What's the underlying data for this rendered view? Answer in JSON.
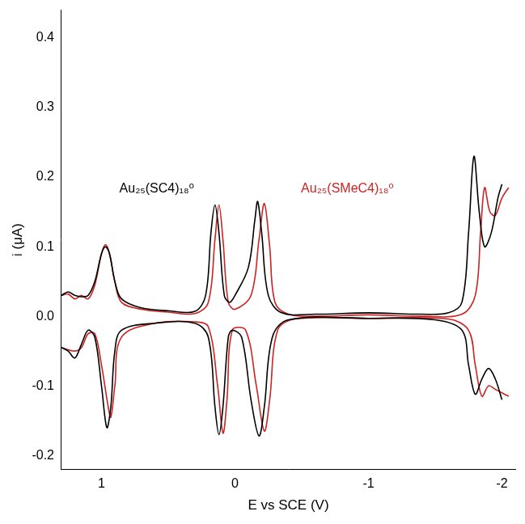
{
  "chart_data": {
    "type": "line",
    "x_label": "E vs SCE (V)",
    "y_label": "i (μA)",
    "xlim": [
      1.3,
      -2.1
    ],
    "xticks": [
      1,
      0,
      -1,
      -2
    ],
    "ylim": [
      -0.22,
      0.44
    ],
    "yticks": [
      0.4,
      0.3,
      0.2,
      0.1,
      {
        "value": 0,
        "label": "0.0"
      },
      -0.1,
      -0.2
    ],
    "grid": false,
    "series": [
      {
        "name": "Au₂₅(SC4)₁₈⁰",
        "color": "#000000",
        "marker": "none",
        "line_style": "solid",
        "x": [
          1.3,
          1.25,
          1.2,
          1.15,
          1.1,
          1.05,
          1.0,
          0.97,
          0.94,
          0.9,
          0.85,
          0.7,
          0.5,
          0.3,
          0.22,
          0.18,
          0.15,
          0.12,
          0.08,
          0.04,
          0.0,
          -0.1,
          -0.15,
          -0.17,
          -0.2,
          -0.25,
          -0.35,
          -0.6,
          -1.0,
          -1.4,
          -1.6,
          -1.7,
          -1.75,
          -1.79,
          -1.83,
          -1.87,
          -1.92,
          -1.97,
          -2.0,
          null,
          1.3,
          1.25,
          1.2,
          1.15,
          1.1,
          1.05,
          1.0,
          0.96,
          0.93,
          0.9,
          0.85,
          0.6,
          0.3,
          0.2,
          0.15,
          0.12,
          0.09,
          0.05,
          0.02,
          -0.05,
          -0.12,
          -0.18,
          -0.22,
          -0.28,
          -0.4,
          -1.0,
          -1.5,
          -1.7,
          -1.75,
          -1.8,
          -1.85,
          -1.9,
          -1.95,
          -2.0
        ],
        "values": [
          0.03,
          0.035,
          0.03,
          0.028,
          0.03,
          0.05,
          0.09,
          0.1,
          0.09,
          0.05,
          0.025,
          0.012,
          0.008,
          0.007,
          0.03,
          0.12,
          0.16,
          0.12,
          0.03,
          0.02,
          0.03,
          0.07,
          0.14,
          0.165,
          0.12,
          0.03,
          0.005,
          0.003,
          0.005,
          0.003,
          0.005,
          0.02,
          0.12,
          0.23,
          0.15,
          0.1,
          0.12,
          0.17,
          0.19,
          null,
          -0.045,
          -0.05,
          -0.06,
          -0.04,
          -0.02,
          -0.03,
          -0.1,
          -0.16,
          -0.13,
          -0.05,
          -0.02,
          -0.01,
          -0.01,
          -0.03,
          -0.13,
          -0.17,
          -0.13,
          -0.03,
          -0.02,
          -0.03,
          -0.12,
          -0.172,
          -0.13,
          -0.03,
          -0.005,
          -0.003,
          -0.005,
          -0.02,
          -0.07,
          -0.112,
          -0.09,
          -0.075,
          -0.09,
          -0.12
        ]
      },
      {
        "name": "Au₂₅(SMeC4)₁₈⁰",
        "color": "#cc2222",
        "marker": "none",
        "line_style": "solid",
        "x": [
          1.3,
          1.25,
          1.2,
          1.15,
          1.1,
          1.05,
          1.0,
          0.97,
          0.94,
          0.9,
          0.85,
          0.7,
          0.5,
          0.3,
          0.2,
          0.15,
          0.12,
          0.09,
          0.05,
          0.0,
          -0.12,
          -0.18,
          -0.22,
          -0.26,
          -0.3,
          -0.4,
          -0.6,
          -1.0,
          -1.4,
          -1.7,
          -1.8,
          -1.84,
          -1.87,
          -1.91,
          -1.95,
          -2.0,
          -2.05,
          null,
          1.3,
          1.2,
          1.15,
          1.1,
          1.05,
          1.0,
          0.95,
          0.93,
          0.9,
          0.85,
          0.6,
          0.3,
          0.2,
          0.13,
          0.09,
          0.06,
          0.02,
          -0.08,
          -0.16,
          -0.22,
          -0.26,
          -0.32,
          -0.45,
          -1.0,
          -1.6,
          -1.75,
          -1.8,
          -1.85,
          -1.9,
          -1.95,
          -2.0,
          -2.05
        ],
        "values": [
          0.03,
          0.032,
          0.025,
          0.03,
          0.025,
          0.045,
          0.09,
          0.103,
          0.09,
          0.05,
          0.02,
          0.01,
          0.006,
          0.004,
          0.02,
          0.11,
          0.16,
          0.11,
          0.02,
          0.01,
          0.03,
          0.11,
          0.162,
          0.1,
          0.02,
          0.003,
          0.0,
          0.002,
          0.0,
          0.003,
          0.03,
          0.12,
          0.185,
          0.15,
          0.145,
          0.17,
          0.185,
          null,
          -0.045,
          -0.05,
          -0.045,
          -0.025,
          -0.025,
          -0.07,
          -0.13,
          -0.145,
          -0.1,
          -0.03,
          -0.01,
          -0.008,
          -0.015,
          -0.1,
          -0.168,
          -0.12,
          -0.02,
          -0.02,
          -0.1,
          -0.165,
          -0.12,
          -0.02,
          -0.004,
          -0.003,
          -0.004,
          -0.02,
          -0.07,
          -0.115,
          -0.1,
          -0.105,
          -0.11,
          -0.115
        ]
      }
    ]
  }
}
